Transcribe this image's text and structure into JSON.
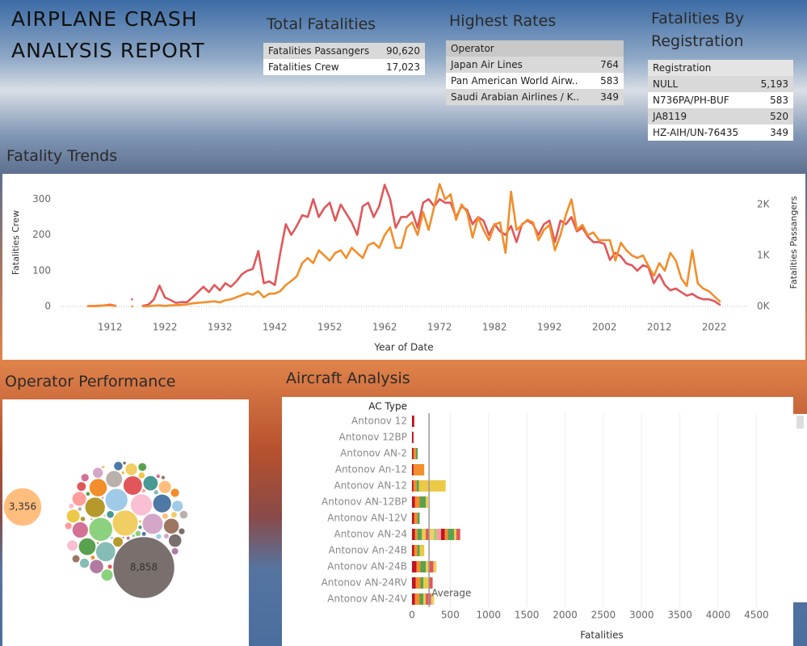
{
  "title": "AIRPLANE CRASH ANALYSIS REPORT",
  "total_fatalities": {
    "title": "Total Fatalities",
    "rows": [
      [
        "Fatalities Passangers",
        "90,620"
      ],
      [
        "Fatalities Crew",
        "17,023"
      ]
    ]
  },
  "highest_rates": {
    "title": "Highest Rates",
    "header": "Operator",
    "rows": [
      [
        "Japan Air Lines",
        "764"
      ],
      [
        "Pan American World Airw..",
        "583"
      ],
      [
        "Saudi Arabian Airlines / K..",
        "349"
      ]
    ]
  },
  "registration": {
    "title": "Fatalities By Registration",
    "header": "Registration",
    "rows": [
      [
        "NULL",
        "5,193"
      ],
      [
        "N736PA/PH-BUF",
        "583"
      ],
      [
        "JA8119",
        "520"
      ],
      [
        "HZ-AIH/UN-76435",
        "349"
      ]
    ]
  },
  "chart_data": [
    {
      "type": "line",
      "title": "Fatality Trends",
      "xlabel": "Year of Date",
      "ylabel": "Fatalities Crew",
      "y2label": "Fatalities Passangers",
      "x": [
        1908,
        1909,
        1910,
        1911,
        1912,
        1913,
        1914,
        1915,
        1916,
        1917,
        1918,
        1919,
        1920,
        1921,
        1922,
        1923,
        1924,
        1925,
        1926,
        1927,
        1928,
        1929,
        1930,
        1931,
        1932,
        1933,
        1934,
        1935,
        1936,
        1937,
        1938,
        1939,
        1940,
        1941,
        1942,
        1943,
        1944,
        1945,
        1946,
        1947,
        1948,
        1949,
        1950,
        1951,
        1952,
        1953,
        1954,
        1955,
        1956,
        1957,
        1958,
        1959,
        1960,
        1961,
        1962,
        1963,
        1964,
        1965,
        1966,
        1967,
        1968,
        1969,
        1970,
        1971,
        1972,
        1973,
        1974,
        1975,
        1976,
        1977,
        1978,
        1979,
        1980,
        1981,
        1982,
        1983,
        1984,
        1985,
        1986,
        1987,
        1988,
        1989,
        1990,
        1991,
        1992,
        1993,
        1994,
        1995,
        1996,
        1997,
        1998,
        1999,
        2000,
        2001,
        2002,
        2003,
        2004,
        2005,
        2006,
        2007,
        2008,
        2009,
        2010,
        2011,
        2012,
        2013,
        2014,
        2015,
        2016,
        2017,
        2018,
        2019,
        2020,
        2021,
        2022,
        2023
      ],
      "xlim": [
        1903,
        2028
      ],
      "xticks": [
        1912,
        1922,
        1932,
        1942,
        1952,
        1962,
        1972,
        1982,
        1992,
        2002,
        2012,
        2022
      ],
      "ylim": [
        0,
        355
      ],
      "yticks": [
        0,
        100,
        200,
        300
      ],
      "y2lim": [
        0,
        2490
      ],
      "y2ticks": [
        {
          "value": 0,
          "label": "0K"
        },
        {
          "value": 1000,
          "label": "1K"
        },
        {
          "value": 2000,
          "label": "2K"
        }
      ],
      "series": [
        {
          "color": "#e15759",
          "values": [
            1,
            1,
            2,
            3,
            5,
            2,
            null,
            null,
            20,
            null,
            2,
            5,
            20,
            58,
            25,
            18,
            10,
            12,
            12,
            25,
            40,
            55,
            40,
            60,
            45,
            65,
            55,
            70,
            90,
            100,
            105,
            155,
            65,
            70,
            60,
            150,
            230,
            200,
            225,
            255,
            250,
            300,
            250,
            275,
            290,
            240,
            285,
            260,
            235,
            200,
            280,
            290,
            250,
            280,
            340,
            300,
            220,
            250,
            250,
            265,
            220,
            290,
            300,
            280,
            300,
            290,
            290,
            250,
            280,
            270,
            230,
            250,
            240,
            200,
            230,
            210,
            200,
            225,
            180,
            230,
            240,
            230,
            200,
            230,
            240,
            180,
            240,
            230,
            250,
            210,
            220,
            195,
            180,
            180,
            175,
            130,
            150,
            140,
            120,
            115,
            100,
            115,
            110,
            65,
            90,
            60,
            45,
            50,
            40,
            30,
            35,
            25,
            20,
            20,
            15,
            5
          ]
        },
        {
          "color": "#f28e2b",
          "axis": "y2",
          "values": [
            5,
            5,
            10,
            20,
            20,
            10,
            null,
            null,
            0,
            null,
            0,
            5,
            15,
            20,
            10,
            20,
            25,
            30,
            40,
            60,
            70,
            80,
            90,
            100,
            80,
            120,
            140,
            180,
            220,
            260,
            230,
            300,
            180,
            250,
            250,
            300,
            420,
            500,
            590,
            850,
            950,
            850,
            1100,
            1000,
            900,
            1050,
            1100,
            950,
            1150,
            1050,
            950,
            1200,
            1250,
            1150,
            1400,
            1550,
            1150,
            1150,
            1550,
            1650,
            1400,
            1850,
            1500,
            1950,
            2400,
            2100,
            2200,
            1700,
            2000,
            1850,
            1350,
            1750,
            1500,
            1300,
            1600,
            1650,
            1050,
            2250,
            1500,
            1600,
            1700,
            1650,
            1300,
            1500,
            1600,
            1100,
            1400,
            1800,
            2100,
            1500,
            1600,
            1400,
            1450,
            1300,
            1300,
            1300,
            900,
            1250,
            1100,
            1000,
            950,
            1000,
            800,
            600,
            850,
            700,
            1050,
            900,
            550,
            400,
            1100,
            450,
            350,
            300,
            200,
            100
          ]
        }
      ]
    },
    {
      "type": "bubble",
      "title": "Operator Performance",
      "values": [
        8858,
        3356,
        1550,
        1300,
        1200,
        1100,
        1000,
        950,
        900,
        850,
        800,
        750,
        700,
        650,
        600,
        560,
        520,
        480,
        450,
        420,
        400,
        380,
        350,
        330,
        300,
        280,
        260,
        240,
        220,
        200,
        190,
        180,
        170,
        160,
        150,
        140,
        130,
        120,
        110,
        100,
        95,
        90,
        85,
        80,
        75,
        70,
        65,
        60,
        55,
        50,
        48,
        46,
        44,
        42,
        40,
        38,
        36,
        34,
        32,
        30,
        28,
        26,
        24,
        22,
        20,
        18,
        16,
        14,
        12,
        10
      ],
      "value_labels": [
        "8,858",
        "3,356",
        null,
        null,
        null,
        null,
        null,
        null,
        null,
        null,
        null,
        null,
        null,
        null,
        null,
        null,
        null,
        null,
        null,
        null,
        null,
        null,
        null,
        null,
        null,
        null,
        null,
        null,
        null,
        null,
        null,
        null,
        null,
        null,
        null,
        null,
        null,
        null,
        null,
        null,
        null,
        null,
        null,
        null,
        null,
        null,
        null,
        null,
        null,
        null,
        null,
        null,
        null,
        null,
        null,
        null,
        null,
        null,
        null,
        null,
        null,
        null,
        null,
        null,
        null,
        null,
        null,
        null,
        null,
        null
      ],
      "colors": [
        "#79706e",
        "#ffbe7d",
        "#f1ce63",
        "#8cd17d",
        "#a0cbe8",
        "#fabfd2",
        "#d4a6c8",
        "#b6992d",
        "#86bcb6",
        "#e15759",
        "#4e79a7",
        "#f28e2b",
        "#59a14f",
        "#bab0ac",
        "#d37295",
        "#9d7660",
        "#499894",
        "#ff9d9a",
        "#b07aa1",
        "#edc948"
      ]
    },
    {
      "type": "bar",
      "orientation": "horizontal",
      "title": "Aircraft Analysis",
      "category_label": "AC Type",
      "xlabel": "Fatalities",
      "categories": [
        "Antonov 12",
        "Antonov 12BP",
        "Antonov AN-2",
        "Antonov An-12",
        "Antonov AN-12",
        "Antonov AN-12BP",
        "Antonov AN-12V",
        "Antonov AN-24",
        "Antonov An-24B",
        "Antonov AN-24B",
        "Antonov AN-24RV",
        "Antonov AN-24V"
      ],
      "segments": [
        [
          30
        ],
        [
          20
        ],
        [
          20,
          30,
          25
        ],
        [
          20,
          140
        ],
        [
          20,
          40,
          30,
          350
        ],
        [
          40,
          60,
          80,
          30
        ],
        [
          30,
          40,
          30
        ],
        [
          40,
          30,
          60,
          50,
          40,
          70,
          30,
          60,
          50,
          40,
          80,
          30,
          50
        ],
        [
          30,
          40,
          30,
          60
        ],
        [
          60,
          50,
          70,
          40,
          60,
          40
        ],
        [
          50,
          60,
          40,
          70,
          50
        ],
        [
          40,
          60,
          50,
          30,
          70,
          40
        ]
      ],
      "colors": [
        "#c0141e",
        "#f28e2b",
        "#59a14f",
        "#edc948",
        "#e15759",
        "#f1ce63",
        "#8cd17d",
        "#ff9d9a"
      ],
      "xlim": [
        0,
        4960
      ],
      "xticks": [
        0,
        500,
        1000,
        1500,
        2000,
        2500,
        3000,
        3500,
        4000,
        4500
      ],
      "grid": true,
      "reference_line": {
        "label": "Average",
        "value": 223
      }
    }
  ]
}
